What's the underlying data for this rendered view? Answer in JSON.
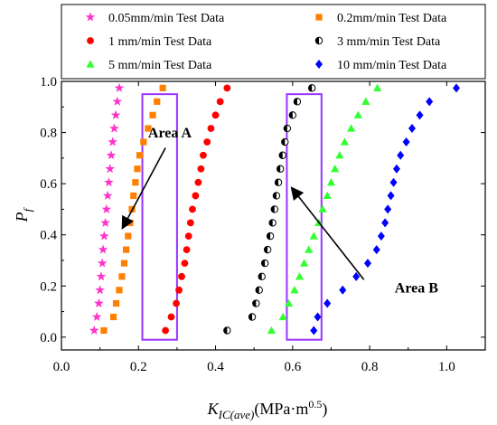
{
  "chart_data": {
    "type": "scatter",
    "title": "",
    "xlabel": {
      "main": "K",
      "sub": "IC(ave)",
      "unit": "(MPa·m",
      "sup": "0.5",
      "close": ")"
    },
    "ylabel": {
      "main": "P",
      "sub": "f"
    },
    "xlim": [
      0.0,
      1.1
    ],
    "ylim": [
      -0.05,
      1.0
    ],
    "x_ticks": [
      "0.0",
      "0.2",
      "0.4",
      "0.6",
      "0.8",
      "1.0"
    ],
    "y_ticks": [
      "0.0",
      "0.2",
      "0.4",
      "0.6",
      "0.8",
      "1.0"
    ],
    "grid": false,
    "legend_position": "top",
    "series": [
      {
        "name": "0.05mm/min Test Data",
        "marker": "star",
        "color": "#ff33cc",
        "x": [
          0.085,
          0.092,
          0.097,
          0.1,
          0.103,
          0.106,
          0.108,
          0.111,
          0.114,
          0.117,
          0.12,
          0.123,
          0.126,
          0.129,
          0.133,
          0.137,
          0.141,
          0.145,
          0.15
        ],
        "y": [
          0.026,
          0.079,
          0.132,
          0.184,
          0.237,
          0.289,
          0.342,
          0.395,
          0.447,
          0.5,
          0.553,
          0.605,
          0.658,
          0.711,
          0.763,
          0.816,
          0.868,
          0.921,
          0.974
        ]
      },
      {
        "name": "0.2mm/min Test Data",
        "marker": "square",
        "color": "#ff8000",
        "x": [
          0.11,
          0.135,
          0.142,
          0.15,
          0.157,
          0.163,
          0.168,
          0.173,
          0.178,
          0.183,
          0.187,
          0.192,
          0.197,
          0.203,
          0.213,
          0.225,
          0.237,
          0.248,
          0.263
        ],
        "y": [
          0.026,
          0.079,
          0.132,
          0.184,
          0.237,
          0.289,
          0.342,
          0.395,
          0.447,
          0.5,
          0.553,
          0.605,
          0.658,
          0.711,
          0.763,
          0.816,
          0.868,
          0.921,
          0.974
        ]
      },
      {
        "name": "1  mm/min Test Data",
        "marker": "circle",
        "color": "#ff0000",
        "x": [
          0.27,
          0.285,
          0.298,
          0.305,
          0.312,
          0.32,
          0.325,
          0.33,
          0.335,
          0.34,
          0.348,
          0.355,
          0.362,
          0.368,
          0.378,
          0.388,
          0.4,
          0.412,
          0.43
        ],
        "y": [
          0.026,
          0.079,
          0.132,
          0.184,
          0.237,
          0.289,
          0.342,
          0.395,
          0.447,
          0.5,
          0.553,
          0.605,
          0.658,
          0.711,
          0.763,
          0.816,
          0.868,
          0.921,
          0.974
        ]
      },
      {
        "name": "3  mm/min Test Data",
        "marker": "half-circle",
        "color": "#000000",
        "x": [
          0.43,
          0.495,
          0.505,
          0.513,
          0.52,
          0.528,
          0.535,
          0.542,
          0.548,
          0.553,
          0.558,
          0.563,
          0.568,
          0.574,
          0.58,
          0.586,
          0.6,
          0.612,
          0.65
        ],
        "y": [
          0.026,
          0.079,
          0.132,
          0.184,
          0.237,
          0.289,
          0.342,
          0.395,
          0.447,
          0.5,
          0.553,
          0.605,
          0.658,
          0.711,
          0.763,
          0.816,
          0.868,
          0.921,
          0.974
        ]
      },
      {
        "name": "5  mm/min Test Data",
        "marker": "triangle",
        "color": "#33ff33",
        "x": [
          0.545,
          0.575,
          0.59,
          0.605,
          0.618,
          0.63,
          0.642,
          0.655,
          0.668,
          0.678,
          0.69,
          0.7,
          0.71,
          0.722,
          0.735,
          0.752,
          0.77,
          0.79,
          0.82
        ],
        "y": [
          0.026,
          0.079,
          0.132,
          0.184,
          0.237,
          0.289,
          0.342,
          0.395,
          0.447,
          0.5,
          0.553,
          0.605,
          0.658,
          0.711,
          0.763,
          0.816,
          0.868,
          0.921,
          0.974
        ]
      },
      {
        "name": "10 mm/min Test Data",
        "marker": "diamond",
        "color": "#0000ff",
        "x": [
          0.655,
          0.665,
          0.69,
          0.73,
          0.765,
          0.795,
          0.818,
          0.83,
          0.84,
          0.847,
          0.855,
          0.862,
          0.87,
          0.88,
          0.895,
          0.91,
          0.93,
          0.955,
          1.025
        ],
        "y": [
          0.026,
          0.079,
          0.132,
          0.184,
          0.237,
          0.289,
          0.342,
          0.395,
          0.447,
          0.5,
          0.553,
          0.605,
          0.658,
          0.711,
          0.763,
          0.816,
          0.868,
          0.921,
          0.974
        ]
      }
    ],
    "annotations": [
      {
        "label": "Area A",
        "box": {
          "x0": 0.21,
          "x1": 0.3,
          "y0": -0.01,
          "y1": 0.95
        },
        "text_at": {
          "x": 0.225,
          "y": 0.78
        },
        "arrow_from": {
          "x": 0.27,
          "y": 0.74
        },
        "arrow_to": {
          "x": 0.158,
          "y": 0.425
        },
        "box_color": "#9933ff"
      },
      {
        "label": "Area B",
        "box": {
          "x0": 0.585,
          "x1": 0.675,
          "y0": -0.01,
          "y1": 0.95
        },
        "text_at": {
          "x": 0.865,
          "y": 0.175
        },
        "arrow_from": {
          "x": 0.785,
          "y": 0.225
        },
        "arrow_to": {
          "x": 0.597,
          "y": 0.585
        },
        "box_color": "#9933ff"
      }
    ]
  }
}
